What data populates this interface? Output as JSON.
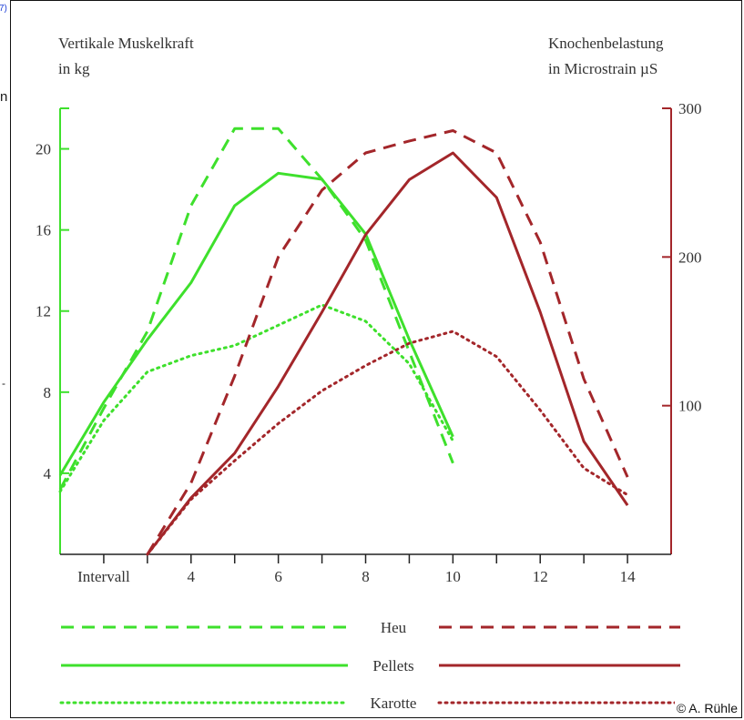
{
  "gutter": {
    "link_fragment": "7)",
    "letter_a": "n",
    "letter_b": "-"
  },
  "left_axis_title": {
    "line1": "Vertikale Muskelkraft",
    "line2": "in kg"
  },
  "right_axis_title": {
    "line1": "Knochenbelastung",
    "line2": "in Microstrain µS"
  },
  "copyright": "© A. Rühle",
  "colors": {
    "green": "#3ee02c",
    "red": "#a3262a",
    "axis_green": "#3ee02c",
    "axis_red": "#a3262a"
  },
  "chart_data": {
    "type": "line",
    "x_axis": {
      "tick_labels": [
        "Intervall",
        "4",
        "6",
        "8",
        "10",
        "12",
        "14"
      ],
      "tick_positions": [
        2,
        4,
        6,
        8,
        10,
        12,
        14
      ],
      "range": [
        1,
        15
      ]
    },
    "y_left": {
      "ylabel": "Vertikale Muskelkraft in kg",
      "ticks": [
        4,
        8,
        12,
        16,
        20
      ],
      "range": [
        0,
        22
      ],
      "color": "green"
    },
    "y_right": {
      "ylabel": "Knochenbelastung in Microstrain µS",
      "ticks": [
        100,
        200,
        300
      ],
      "range": [
        0,
        300
      ],
      "color": "red"
    },
    "series": [
      {
        "name": "Heu",
        "axis": "left",
        "color": "green",
        "style": "dashed",
        "points": [
          [
            1,
            3.2
          ],
          [
            2,
            7.2
          ],
          [
            3,
            11.0
          ],
          [
            4,
            17.2
          ],
          [
            5,
            21.0
          ],
          [
            6,
            21.0
          ],
          [
            7,
            18.5
          ],
          [
            8,
            15.5
          ],
          [
            9,
            10.0
          ],
          [
            10,
            4.5
          ]
        ]
      },
      {
        "name": "Pellets",
        "axis": "left",
        "color": "green",
        "style": "solid",
        "points": [
          [
            1,
            3.9
          ],
          [
            2,
            7.5
          ],
          [
            3,
            10.6
          ],
          [
            4,
            13.4
          ],
          [
            5,
            17.2
          ],
          [
            6,
            18.8
          ],
          [
            7,
            18.5
          ],
          [
            8,
            15.8
          ],
          [
            9,
            10.6
          ],
          [
            10,
            5.8
          ]
        ]
      },
      {
        "name": "Karotte",
        "axis": "left",
        "color": "green",
        "style": "dotted",
        "points": [
          [
            1,
            3.1
          ],
          [
            2,
            6.6
          ],
          [
            3,
            9.0
          ],
          [
            4,
            9.8
          ],
          [
            5,
            10.3
          ],
          [
            6,
            11.3
          ],
          [
            7,
            12.3
          ],
          [
            8,
            11.5
          ],
          [
            9,
            9.4
          ],
          [
            10,
            5.6
          ]
        ]
      },
      {
        "name": "Heu",
        "axis": "right",
        "color": "red",
        "style": "dashed",
        "points": [
          [
            3,
            0
          ],
          [
            4,
            48
          ],
          [
            5,
            120
          ],
          [
            6,
            200
          ],
          [
            7,
            245
          ],
          [
            8,
            270
          ],
          [
            9,
            278
          ],
          [
            10,
            285
          ],
          [
            11,
            270
          ],
          [
            12,
            210
          ],
          [
            13,
            118
          ],
          [
            14,
            52
          ]
        ]
      },
      {
        "name": "Pellets",
        "axis": "right",
        "color": "red",
        "style": "solid",
        "points": [
          [
            3,
            0
          ],
          [
            4,
            38
          ],
          [
            5,
            68
          ],
          [
            6,
            113
          ],
          [
            7,
            163
          ],
          [
            8,
            215
          ],
          [
            9,
            252
          ],
          [
            10,
            270
          ],
          [
            11,
            240
          ],
          [
            12,
            163
          ],
          [
            13,
            76
          ],
          [
            14,
            33
          ]
        ]
      },
      {
        "name": "Karotte",
        "axis": "right",
        "color": "red",
        "style": "dotted",
        "points": [
          [
            3,
            0
          ],
          [
            4,
            37
          ],
          [
            5,
            63
          ],
          [
            6,
            88
          ],
          [
            7,
            110
          ],
          [
            8,
            127
          ],
          [
            9,
            142
          ],
          [
            10,
            150
          ],
          [
            11,
            133
          ],
          [
            12,
            97
          ],
          [
            13,
            58
          ],
          [
            14,
            40
          ]
        ]
      }
    ],
    "legend": [
      {
        "label": "Heu",
        "style": "dashed"
      },
      {
        "label": "Pellets",
        "style": "solid"
      },
      {
        "label": "Karotte",
        "style": "dotted"
      }
    ],
    "legend_placement": "bottom",
    "grid": false
  }
}
